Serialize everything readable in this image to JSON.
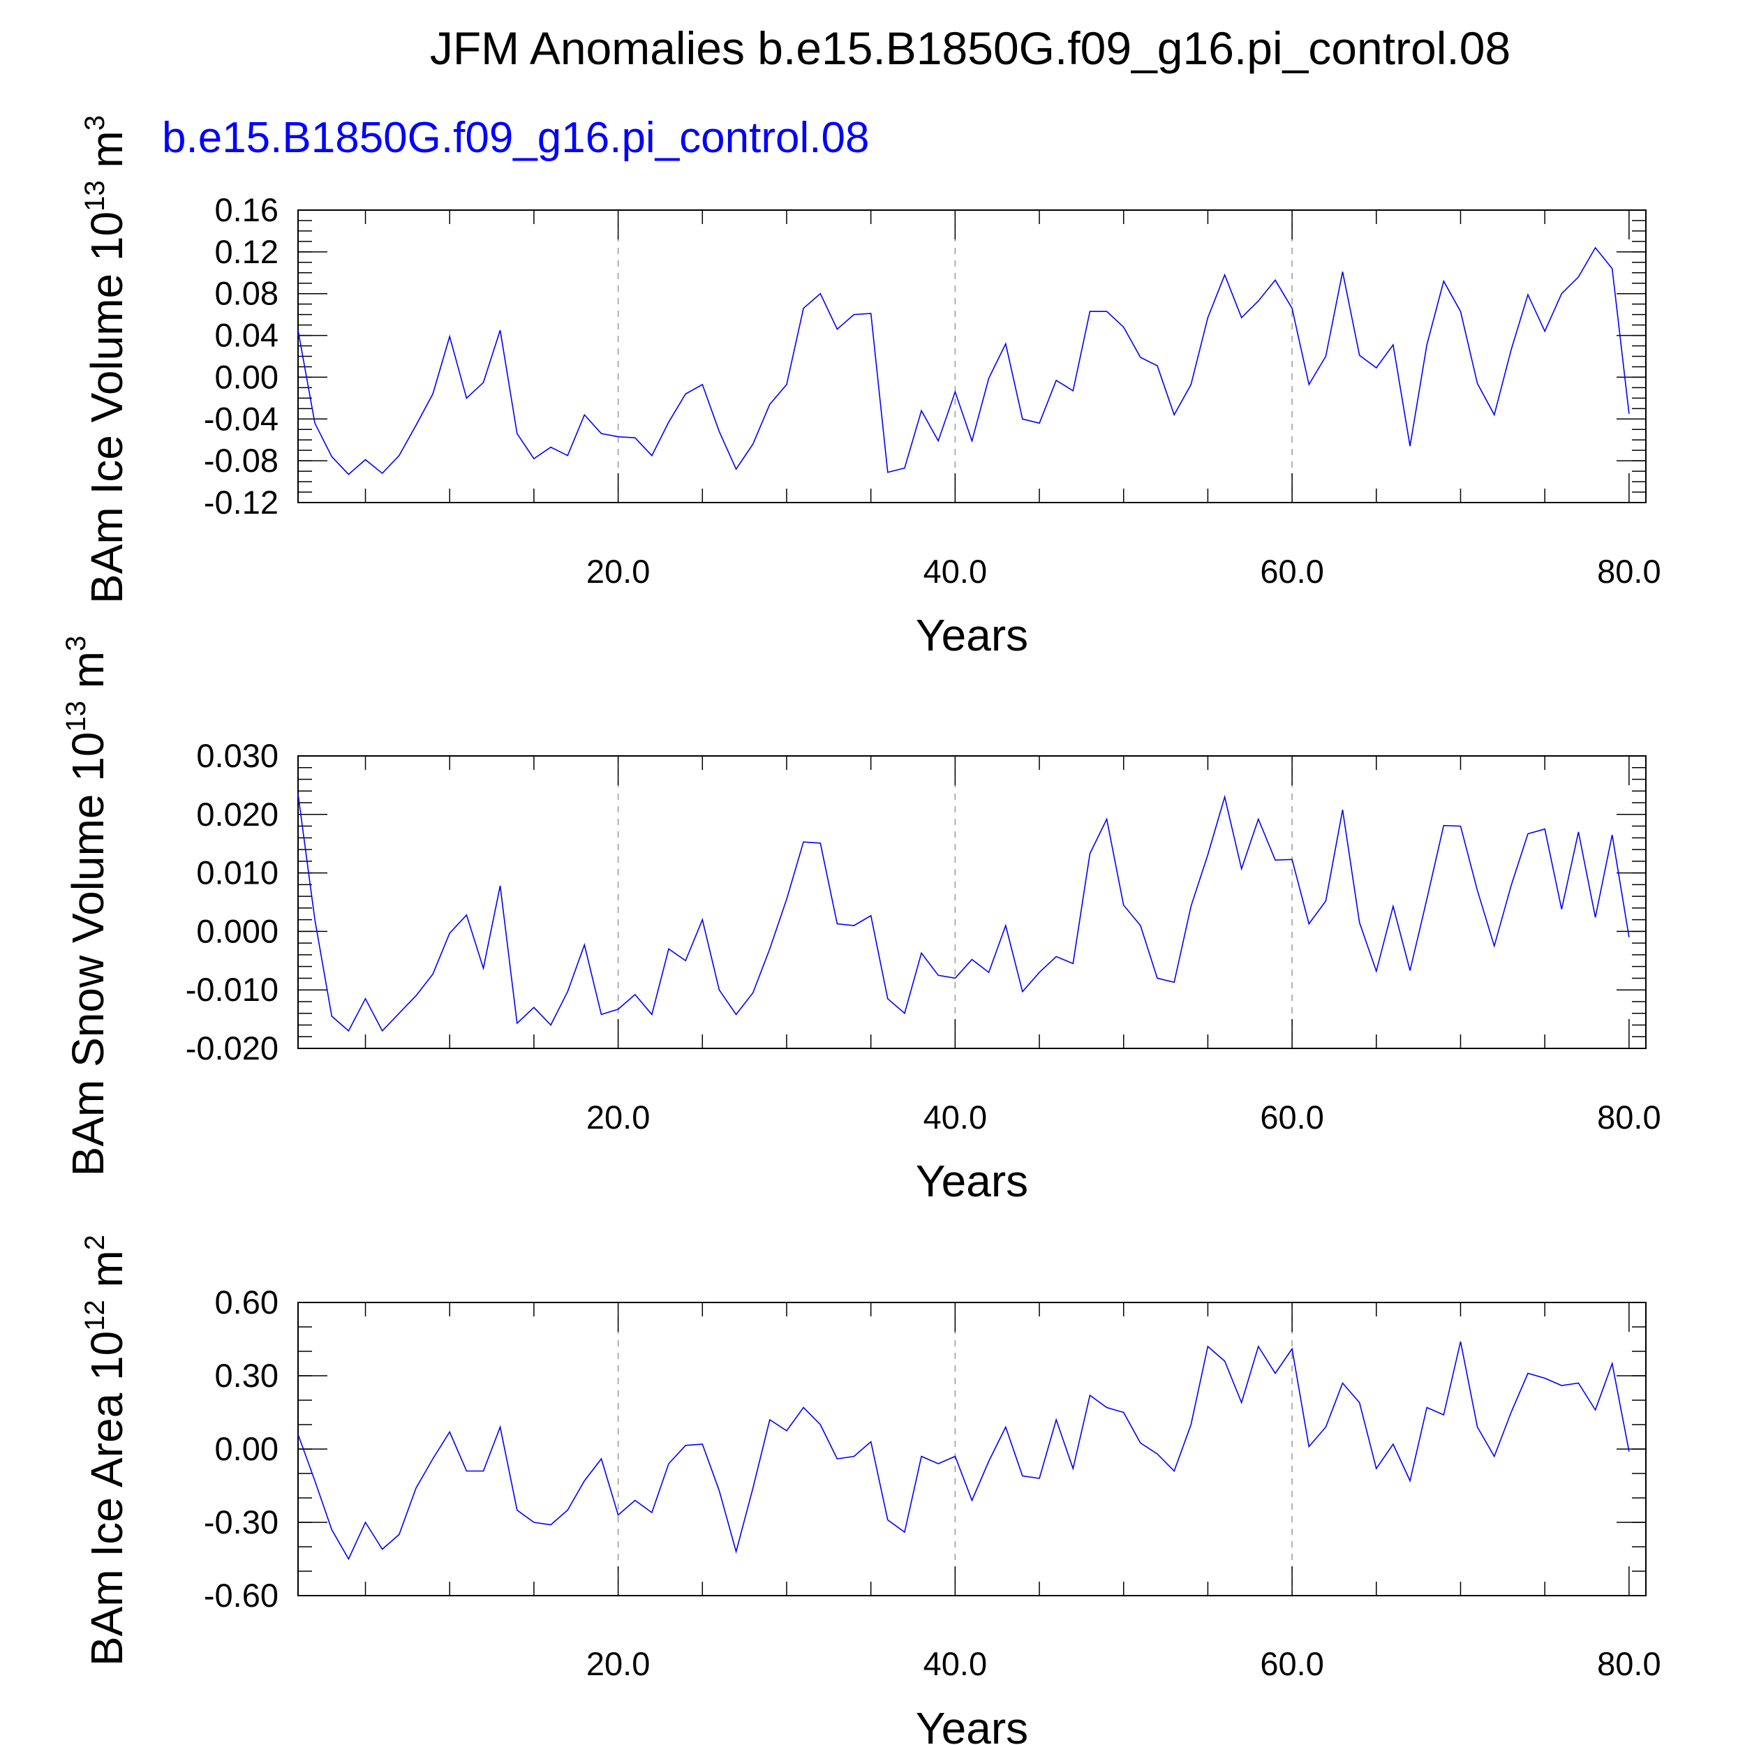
{
  "title": "JFM Anomalies b.e15.B1850G.f09_g16.pi_control.08",
  "colors": {
    "series": "#0000ff",
    "axes": "#000000",
    "grid": "#999999"
  },
  "chart_data": [
    {
      "type": "line",
      "subtitle": "b.e15.B1850G.f09_g16.pi_control.08",
      "ylabel": "BAm Ice Volume 10",
      "yunit_exp": "13",
      "yunit_tail": " m",
      "yunit_pow": "3",
      "xlabel": "Years",
      "xlim": [
        1,
        81
      ],
      "ylim": [
        -0.12,
        0.16
      ],
      "yticks": [
        -0.12,
        -0.08,
        -0.04,
        0.0,
        0.04,
        0.08,
        0.12,
        0.16
      ],
      "ytick_labels": [
        "-0.12",
        "-0.08",
        "-0.04",
        "0.00",
        "0.04",
        "0.08",
        "0.12",
        "0.16"
      ],
      "yminor_step": 0.01,
      "xticks": [
        20,
        40,
        60,
        80
      ],
      "xtick_labels": [
        "20.0",
        "40.0",
        "60.0",
        "80.0"
      ],
      "grid_x": [
        20,
        40,
        60
      ],
      "x_start": 1,
      "values": [
        0.045,
        -0.044,
        -0.076,
        -0.093,
        -0.079,
        -0.092,
        -0.075,
        -0.046,
        -0.016,
        0.039,
        -0.02,
        -0.005,
        0.045,
        -0.054,
        -0.078,
        -0.067,
        -0.075,
        -0.036,
        -0.054,
        -0.057,
        -0.058,
        -0.075,
        -0.043,
        -0.016,
        -0.007,
        -0.052,
        -0.088,
        -0.064,
        -0.026,
        -0.007,
        0.066,
        0.08,
        0.046,
        0.06,
        0.061,
        -0.091,
        -0.087,
        -0.032,
        -0.061,
        -0.014,
        -0.061,
        -0.001,
        0.032,
        -0.04,
        -0.044,
        -0.003,
        -0.013,
        0.063,
        0.063,
        0.048,
        0.019,
        0.011,
        -0.036,
        -0.007,
        0.057,
        0.098,
        0.057,
        0.073,
        0.093,
        0.066,
        -0.007,
        0.02,
        0.101,
        0.021,
        0.009,
        0.031,
        -0.066,
        0.031,
        0.092,
        0.063,
        -0.006,
        -0.036,
        0.026,
        0.079,
        0.044,
        0.08,
        0.096,
        0.124,
        0.104,
        -0.035
      ]
    },
    {
      "type": "line",
      "ylabel": "BAm Snow Volume 10",
      "yunit_exp": "13",
      "yunit_tail": " m",
      "yunit_pow": "3",
      "xlabel": "Years",
      "xlim": [
        1,
        81
      ],
      "ylim": [
        -0.02,
        0.03
      ],
      "yticks": [
        -0.02,
        -0.01,
        0.0,
        0.01,
        0.02,
        0.03
      ],
      "ytick_labels": [
        "-0.020",
        "-0.010",
        "0.000",
        "0.010",
        "0.020",
        "0.030"
      ],
      "yminor_step": 0.002,
      "xticks": [
        20,
        40,
        60,
        80
      ],
      "xtick_labels": [
        "20.0",
        "40.0",
        "60.0",
        "80.0"
      ],
      "grid_x": [
        20,
        40,
        60
      ],
      "x_start": 1,
      "values": [
        0.0235,
        0.002,
        -0.0145,
        -0.017,
        -0.0115,
        -0.017,
        -0.014,
        -0.011,
        -0.0073,
        -0.0003,
        0.0028,
        -0.0063,
        0.0078,
        -0.0157,
        -0.013,
        -0.016,
        -0.0103,
        -0.0023,
        -0.0142,
        -0.0133,
        -0.0108,
        -0.0142,
        -0.003,
        -0.005,
        0.002,
        -0.01,
        -0.0142,
        -0.0105,
        -0.003,
        0.0055,
        0.0153,
        0.0151,
        0.0013,
        0.001,
        0.0027,
        -0.0115,
        -0.014,
        -0.0037,
        -0.0075,
        -0.008,
        -0.0048,
        -0.007,
        0.001,
        -0.0103,
        -0.007,
        -0.0043,
        -0.0055,
        0.0133,
        0.0192,
        0.0045,
        0.001,
        -0.008,
        -0.0087,
        0.0043,
        0.0131,
        0.023,
        0.0107,
        0.0192,
        0.0122,
        0.0123,
        0.0013,
        0.0052,
        0.0208,
        0.0015,
        -0.0068,
        0.0043,
        -0.0067,
        0.0055,
        0.0181,
        0.018,
        0.007,
        -0.0025,
        0.0078,
        0.0167,
        0.0175,
        0.0038,
        0.017,
        0.0024,
        0.0165,
        -0.001
      ]
    },
    {
      "type": "line",
      "ylabel": "BAm Ice Area 10",
      "yunit_exp": "12",
      "yunit_tail": " m",
      "yunit_pow": "2",
      "xlabel": "Years",
      "xlim": [
        1,
        81
      ],
      "ylim": [
        -0.6,
        0.6
      ],
      "yticks": [
        -0.6,
        -0.3,
        0.0,
        0.3,
        0.6
      ],
      "ytick_labels": [
        "-0.60",
        "-0.30",
        "0.00",
        "0.30",
        "0.60"
      ],
      "yminor_step": 0.1,
      "xticks": [
        20,
        40,
        60,
        80
      ],
      "xtick_labels": [
        "20.0",
        "40.0",
        "60.0",
        "80.0"
      ],
      "grid_x": [
        20,
        40,
        60
      ],
      "x_start": 1,
      "values": [
        0.06,
        -0.13,
        -0.33,
        -0.45,
        -0.3,
        -0.41,
        -0.35,
        -0.16,
        -0.04,
        0.07,
        -0.09,
        -0.09,
        0.09,
        -0.25,
        -0.3,
        -0.31,
        -0.25,
        -0.13,
        -0.04,
        -0.27,
        -0.21,
        -0.26,
        -0.06,
        0.015,
        0.02,
        -0.17,
        -0.42,
        -0.16,
        0.12,
        0.075,
        0.17,
        0.1,
        -0.04,
        -0.03,
        0.03,
        -0.29,
        -0.34,
        -0.03,
        -0.06,
        -0.03,
        -0.21,
        -0.05,
        0.09,
        -0.11,
        -0.12,
        0.12,
        -0.08,
        0.22,
        0.17,
        0.15,
        0.025,
        -0.02,
        -0.09,
        0.1,
        0.42,
        0.36,
        0.19,
        0.42,
        0.31,
        0.41,
        0.01,
        0.09,
        0.27,
        0.19,
        -0.08,
        0.02,
        -0.13,
        0.17,
        0.14,
        0.44,
        0.09,
        -0.03,
        0.15,
        0.31,
        0.29,
        0.26,
        0.27,
        0.16,
        0.35,
        -0.01
      ]
    }
  ]
}
